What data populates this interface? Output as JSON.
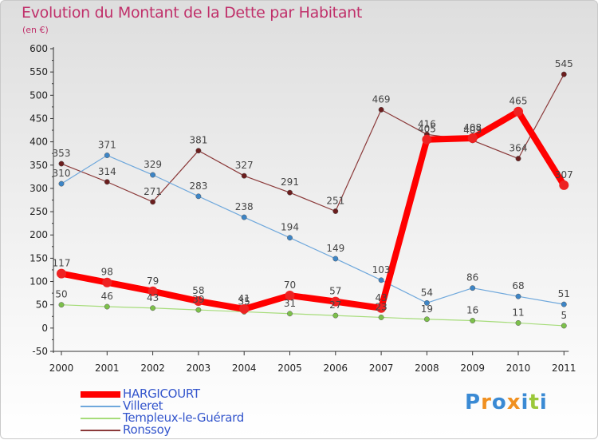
{
  "title": "Evolution du Montant de la Dette par Habitant",
  "subtitle": "(en €)",
  "logo": {
    "text": "Proxiti",
    "colors": [
      "#3a8ad4",
      "#f09020",
      "#3a8ad4",
      "#f09020",
      "#3a8ad4",
      "#9bc83a",
      "#3a8ad4"
    ]
  },
  "chart_data": {
    "type": "line",
    "x": [
      "2000",
      "2001",
      "2002",
      "2003",
      "2004",
      "2005",
      "2006",
      "2007",
      "2008",
      "2009",
      "2010",
      "2011"
    ],
    "ylim": [
      -50,
      600
    ],
    "yticks": [
      -50,
      0,
      50,
      100,
      150,
      200,
      250,
      300,
      350,
      400,
      450,
      500,
      550,
      600
    ],
    "grid": false,
    "legend": "bottom-left",
    "series": [
      {
        "name": "HARGICOURT",
        "color": "#ff0000",
        "marker": "#ee2222",
        "width": 8,
        "msize": 6,
        "values": [
          117,
          98,
          79,
          58,
          41,
          70,
          57,
          43,
          405,
          408,
          465,
          307
        ]
      },
      {
        "name": "Villeret",
        "color": "#6fa8dc",
        "marker": "#3d85c6",
        "width": 1.2,
        "msize": 3.2,
        "values": [
          310,
          371,
          329,
          283,
          238,
          194,
          149,
          103,
          54,
          86,
          68,
          51
        ]
      },
      {
        "name": "Templeux-le-Guérard",
        "color": "#a6dc7a",
        "marker": "#7cc04a",
        "width": 1.2,
        "msize": 3.2,
        "values": [
          50,
          46,
          43,
          39,
          35,
          31,
          27,
          23,
          19,
          16,
          11,
          5
        ]
      },
      {
        "name": "Ronssoy",
        "color": "#8b3a3a",
        "marker": "#6b1e1e",
        "width": 1.2,
        "msize": 3.2,
        "values": [
          353,
          314,
          271,
          381,
          327,
          291,
          251,
          469,
          416,
          403,
          364,
          545
        ]
      }
    ]
  }
}
